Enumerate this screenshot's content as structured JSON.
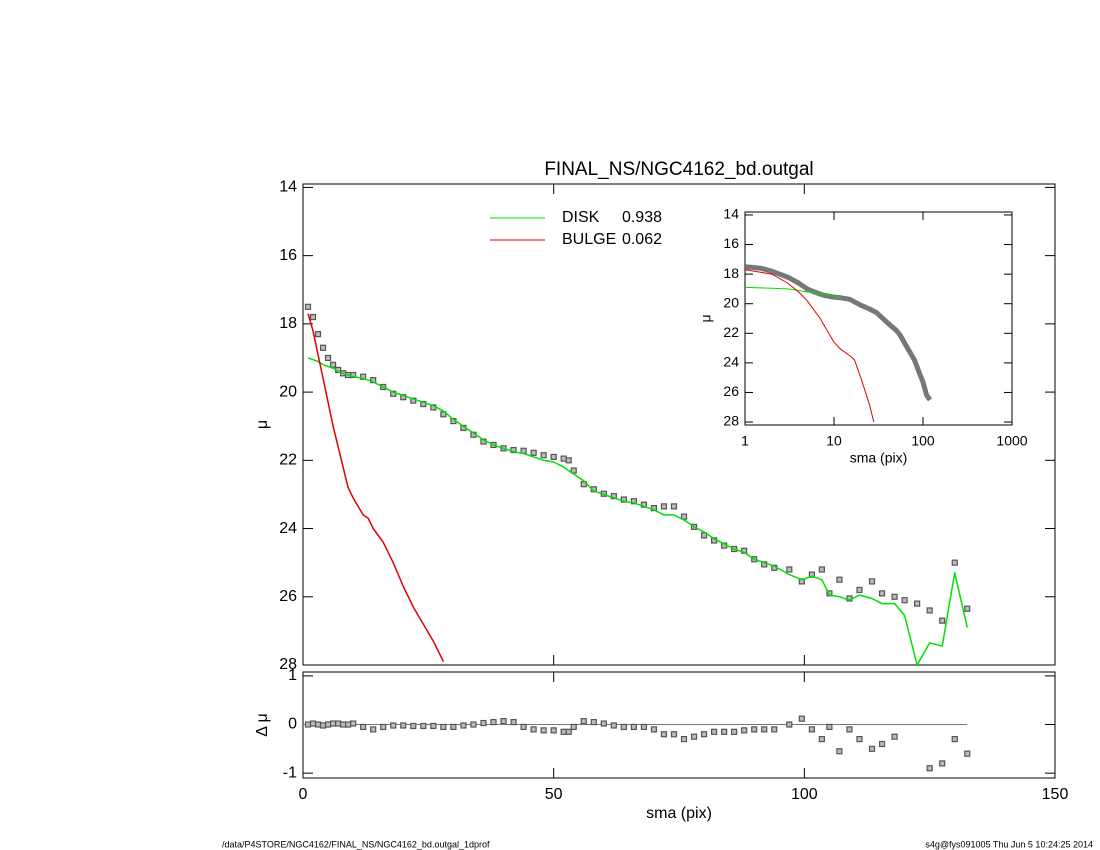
{
  "title": "FINAL_NS/NGC4162_bd.outgal",
  "footer_left": "/data/P4STORE/NGC4162/FINAL_NS/NGC4162_bd.outgal_1dprof",
  "footer_right": "s4g@fys091005  Thu Jun  5 10:24:25 2014",
  "chart_data": [
    {
      "type": "line",
      "ylabel": "μ",
      "xlim": [
        0,
        150
      ],
      "xticks": [
        0,
        50,
        100,
        150
      ],
      "xtick_labels": false,
      "ylim": [
        13.9,
        28
      ],
      "y_inverted": true,
      "yticks": [
        14,
        16,
        18,
        20,
        22,
        24,
        26,
        28
      ],
      "series": [
        {
          "style": "square",
          "color": "#555555",
          "x": [
            1,
            2,
            3,
            4,
            5,
            6,
            7,
            8,
            9,
            10,
            12,
            14,
            16,
            18,
            20,
            22,
            24,
            26,
            28,
            30,
            32,
            34,
            36,
            38,
            40,
            42,
            44,
            46,
            48,
            50,
            52,
            53,
            54,
            56,
            58,
            60,
            62,
            64,
            66,
            68,
            70,
            72,
            74,
            76,
            78,
            80,
            82,
            84,
            86,
            88,
            90,
            92,
            94,
            97,
            99.5,
            101.5,
            103.5,
            105,
            107,
            109,
            111,
            113.5,
            115.5,
            118,
            120,
            122.5,
            125,
            127.5,
            130,
            132.5
          ],
          "values": [
            17.5,
            17.8,
            18.3,
            18.7,
            19.0,
            19.2,
            19.35,
            19.45,
            19.5,
            19.5,
            19.55,
            19.65,
            19.85,
            20.05,
            20.15,
            20.25,
            20.35,
            20.45,
            20.65,
            20.85,
            21.05,
            21.25,
            21.45,
            21.55,
            21.65,
            21.7,
            21.72,
            21.78,
            21.85,
            21.9,
            21.95,
            22.0,
            22.3,
            22.7,
            22.85,
            22.98,
            23.05,
            23.15,
            23.2,
            23.3,
            23.4,
            23.35,
            23.35,
            23.65,
            23.95,
            24.2,
            24.35,
            24.5,
            24.6,
            24.65,
            24.9,
            25.05,
            25.15,
            25.2,
            25.55,
            25.35,
            25.2,
            25.9,
            25.5,
            26.05,
            25.8,
            25.55,
            25.9,
            26.0,
            26.1,
            26.2,
            26.4,
            26.7,
            25.0,
            26.35
          ]
        },
        {
          "name": "DISK",
          "fraction": 0.938,
          "style": "line",
          "color": "#00e000",
          "x": [
            1,
            2,
            3,
            4,
            5,
            6,
            7,
            8,
            9,
            10,
            12,
            14,
            16,
            18,
            20,
            22,
            24,
            26,
            28,
            30,
            32,
            34,
            36,
            38,
            40,
            42,
            44,
            46,
            48,
            50,
            52,
            53,
            54,
            56,
            58,
            60,
            62,
            64,
            66,
            68,
            70,
            72,
            74,
            76,
            78,
            80,
            82,
            84,
            86,
            88,
            90,
            92,
            94,
            97,
            99.5,
            101.5,
            103.5,
            105,
            107,
            109,
            111,
            113.5,
            115.5,
            118,
            120,
            122.5,
            125,
            127.5,
            130,
            132.5
          ],
          "values": [
            19.0,
            19.05,
            19.1,
            19.2,
            19.25,
            19.3,
            19.4,
            19.45,
            19.5,
            19.55,
            19.6,
            19.7,
            19.85,
            20.0,
            20.1,
            20.2,
            20.3,
            20.4,
            20.55,
            20.8,
            21.0,
            21.2,
            21.4,
            21.55,
            21.65,
            21.75,
            21.8,
            21.9,
            22.0,
            22.05,
            22.2,
            22.3,
            22.4,
            22.6,
            22.9,
            23.0,
            23.1,
            23.2,
            23.25,
            23.35,
            23.45,
            23.6,
            23.6,
            23.75,
            23.95,
            24.1,
            24.3,
            24.45,
            24.6,
            24.7,
            24.9,
            25.0,
            25.1,
            25.35,
            25.5,
            25.4,
            25.5,
            25.95,
            26.0,
            26.1,
            25.95,
            26.05,
            26.2,
            26.2,
            26.55,
            28.0,
            27.35,
            27.45,
            25.3,
            26.9
          ]
        },
        {
          "name": "BULGE",
          "fraction": 0.062,
          "style": "line",
          "color": "#e00000",
          "x": [
            1,
            2,
            3,
            4,
            5,
            6,
            7,
            8,
            9,
            10,
            11,
            12,
            13,
            14,
            16,
            18,
            20,
            22,
            24,
            26,
            28
          ],
          "values": [
            17.7,
            18.2,
            18.9,
            19.6,
            20.3,
            21.0,
            21.6,
            22.2,
            22.8,
            23.1,
            23.35,
            23.6,
            23.7,
            24.0,
            24.4,
            25.0,
            25.7,
            26.3,
            26.8,
            27.3,
            27.9
          ]
        }
      ]
    },
    {
      "type": "scatter",
      "ylabel": "Δ μ",
      "xlabel": "sma (pix)",
      "xlim": [
        0,
        150
      ],
      "xticks": [
        0,
        50,
        100,
        150
      ],
      "xtick_labels": true,
      "ylim": [
        -1.1,
        1.08
      ],
      "yticks": [
        -1,
        0,
        1
      ],
      "reference_line": 0,
      "series": [
        {
          "style": "square",
          "color": "#555555",
          "x": [
            1,
            2,
            3,
            4,
            5,
            6,
            7,
            8,
            9,
            10,
            12,
            14,
            16,
            18,
            20,
            22,
            24,
            26,
            28,
            30,
            32,
            34,
            36,
            38,
            40,
            42,
            44,
            46,
            48,
            50,
            52,
            53,
            54,
            56,
            58,
            60,
            62,
            64,
            66,
            68,
            70,
            72,
            74,
            76,
            78,
            80,
            82,
            84,
            86,
            88,
            90,
            92,
            94,
            97,
            99.5,
            101.5,
            103.5,
            105,
            107,
            109,
            111,
            113.5,
            115.5,
            118,
            120,
            122.5,
            125,
            127.5,
            130,
            132.5
          ],
          "values": [
            0.0,
            0.02,
            0.0,
            -0.02,
            0.0,
            0.02,
            0.02,
            0.0,
            0.0,
            0.02,
            -0.05,
            -0.1,
            -0.05,
            -0.02,
            -0.02,
            -0.03,
            -0.03,
            -0.03,
            -0.05,
            -0.05,
            -0.02,
            0.0,
            0.03,
            0.05,
            0.07,
            0.05,
            -0.05,
            -0.1,
            -0.12,
            -0.12,
            -0.15,
            -0.15,
            -0.05,
            0.07,
            0.05,
            0.02,
            -0.02,
            -0.05,
            -0.05,
            -0.05,
            -0.1,
            -0.2,
            -0.2,
            -0.3,
            -0.25,
            -0.2,
            -0.15,
            -0.15,
            -0.15,
            -0.12,
            -0.1,
            -0.1,
            -0.1,
            0.0,
            0.12,
            -0.1,
            -0.3,
            -0.05,
            -0.55,
            -0.1,
            -0.3,
            -0.5,
            -0.4,
            -0.25,
            null,
            null,
            -0.9,
            -0.8,
            -0.3,
            -0.6
          ]
        }
      ]
    },
    {
      "type": "line",
      "ylabel": "μ",
      "xlabel": "sma (pix)",
      "xscale": "log",
      "xlim": [
        1,
        1000
      ],
      "xticks": [
        1,
        10,
        100,
        1000
      ],
      "xtick_labels": true,
      "ylim": [
        13.8,
        28.2
      ],
      "y_inverted": true,
      "yticks": [
        14,
        16,
        18,
        20,
        22,
        24,
        26,
        28
      ],
      "series": [
        {
          "style": "band",
          "color": "#555555",
          "x": [
            1,
            1.5,
            2,
            3,
            4,
            5,
            6,
            7,
            8,
            10,
            12,
            15,
            20,
            25,
            30,
            40,
            50,
            55,
            60,
            70,
            80,
            90,
            100,
            110,
            120
          ],
          "values": [
            17.5,
            17.6,
            17.8,
            18.2,
            18.6,
            19.0,
            19.2,
            19.35,
            19.45,
            19.55,
            19.6,
            19.7,
            20.1,
            20.35,
            20.6,
            21.3,
            21.8,
            22.1,
            22.5,
            23.2,
            23.8,
            24.6,
            25.3,
            26.2,
            26.5
          ]
        },
        {
          "style": "line",
          "color": "#00e000",
          "x": [
            1,
            2,
            3,
            5,
            8,
            12
          ],
          "values": [
            18.9,
            18.95,
            19.0,
            19.2,
            19.4,
            19.6
          ]
        },
        {
          "style": "line",
          "color": "#e00000",
          "x": [
            1,
            2,
            3,
            4,
            5,
            7,
            10,
            12,
            15,
            17,
            20,
            25,
            28
          ],
          "values": [
            17.7,
            18.0,
            18.6,
            19.2,
            19.8,
            21.0,
            22.6,
            23.1,
            23.5,
            23.8,
            25.0,
            26.8,
            28.0
          ]
        }
      ]
    }
  ]
}
